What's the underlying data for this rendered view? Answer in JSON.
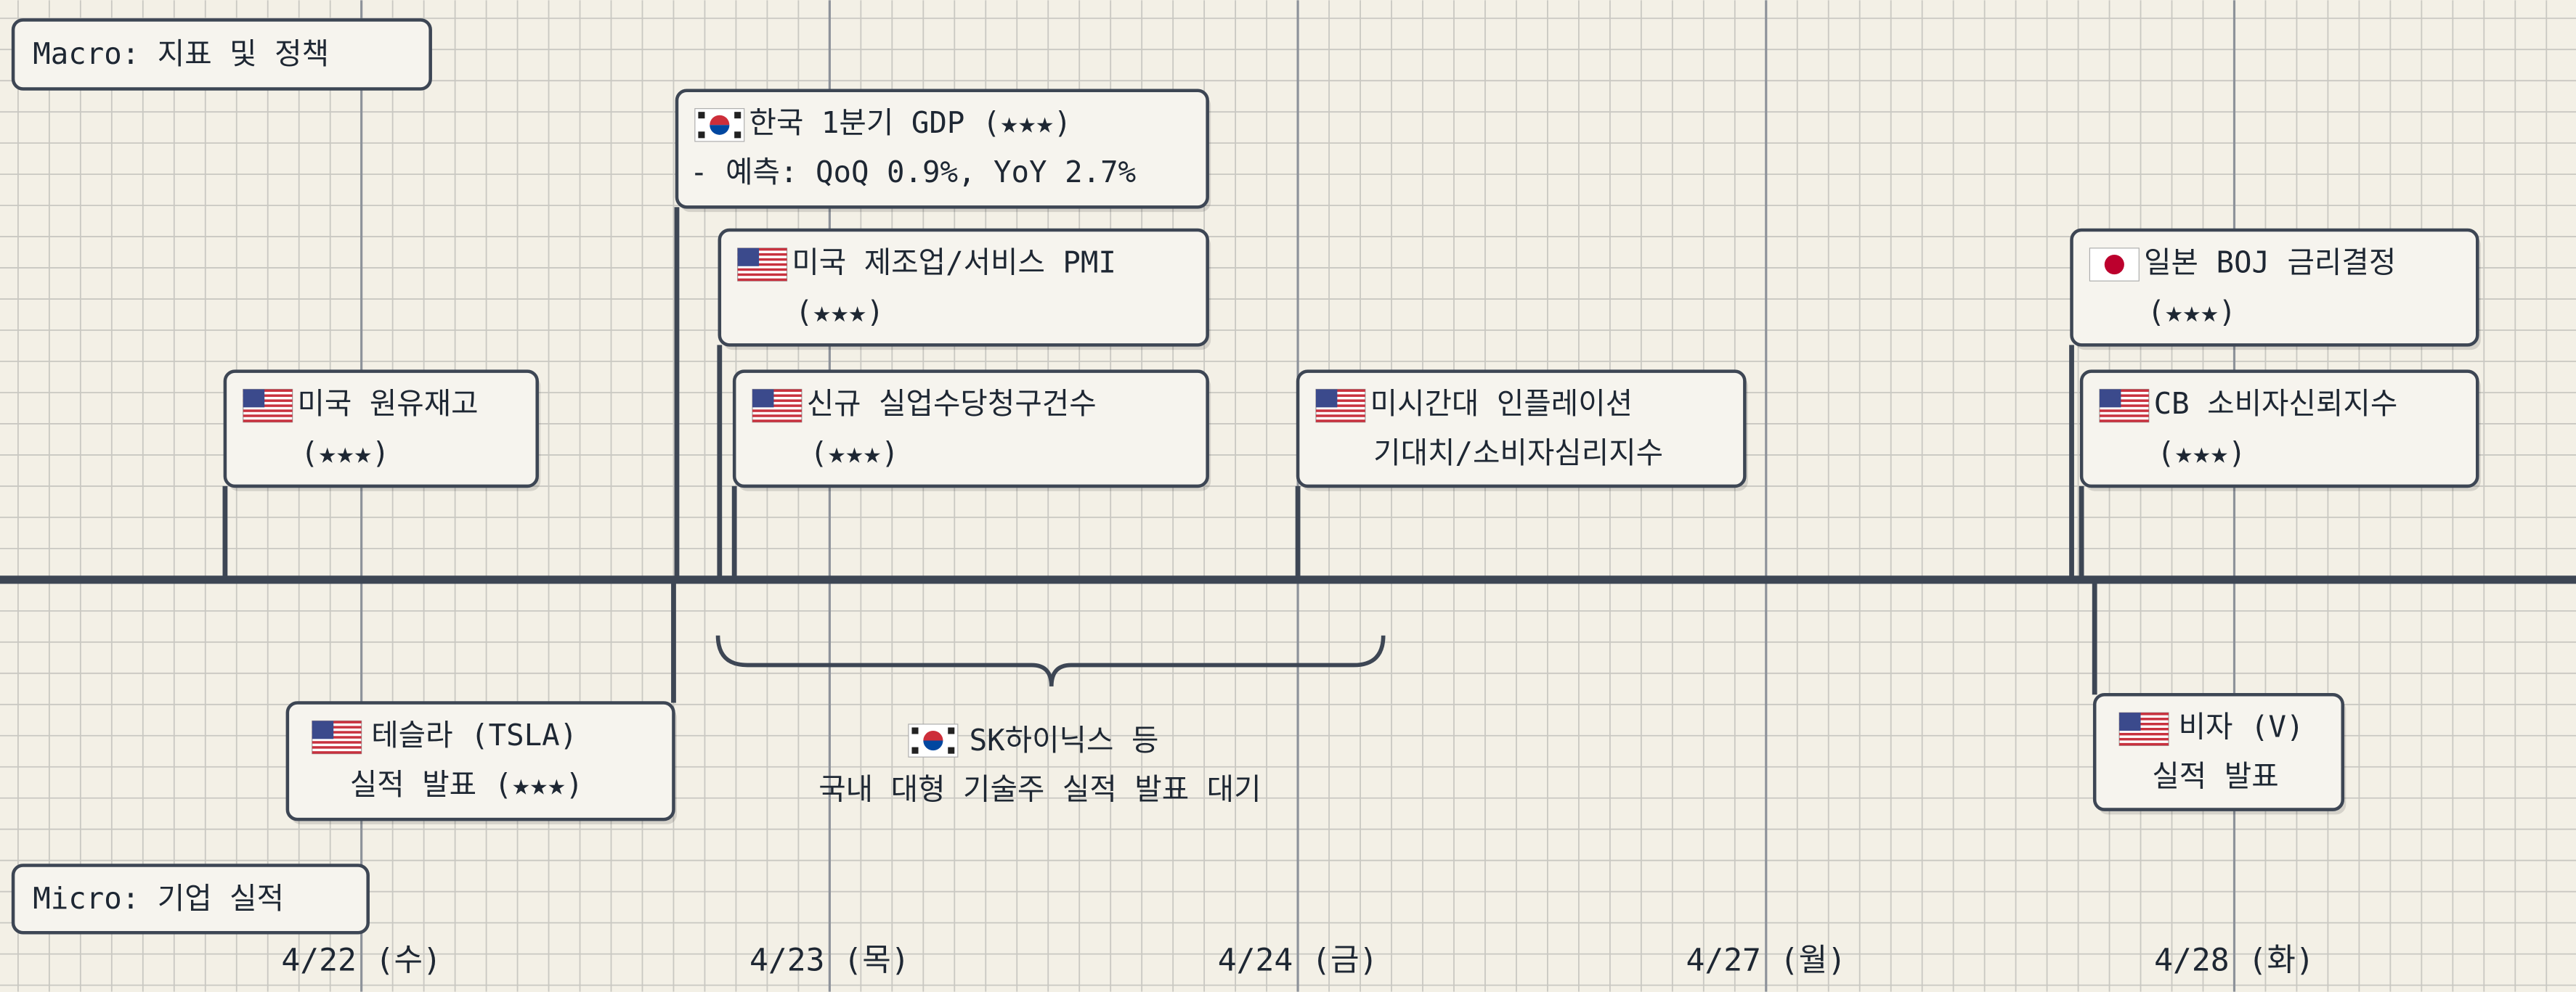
{
  "labels": {
    "macro": "Macro: 지표 및 정책",
    "micro": "Micro: 기업 실적"
  },
  "dates": [
    "4/22 (수)",
    "4/23 (목)",
    "4/24 (금)",
    "4/27 (월)",
    "4/28 (화)"
  ],
  "events": [
    {
      "lines": [
        "한국 1분기 GDP (★★★)",
        "- 예측: QoQ 0.9%, YoY 2.7%"
      ]
    },
    {
      "lines": [
        "미국 제조업/서비스 PMI",
        "(★★★)"
      ]
    },
    {
      "lines": [
        "신규 실업수당청구건수",
        "(★★★)"
      ]
    },
    {
      "lines": [
        "미국 원유재고",
        "(★★★)"
      ]
    },
    {
      "lines": [
        "미시간대 인플레이션",
        "기대치/소비자심리지수"
      ]
    },
    {
      "lines": [
        "일본 BOJ 금리결정",
        "(★★★)"
      ]
    },
    {
      "lines": [
        "CB 소비자신뢰지수",
        "(★★★)"
      ]
    },
    {
      "lines": [
        "테슬라 (TSLA)",
        "실적 발표 (★★★)"
      ]
    },
    {
      "lines": [
        "비자 (V)",
        "실적 발표"
      ]
    }
  ],
  "group": {
    "lines": [
      "SK하이닉스 등",
      "국내 대형 기술주 실적 발표 대기"
    ]
  }
}
